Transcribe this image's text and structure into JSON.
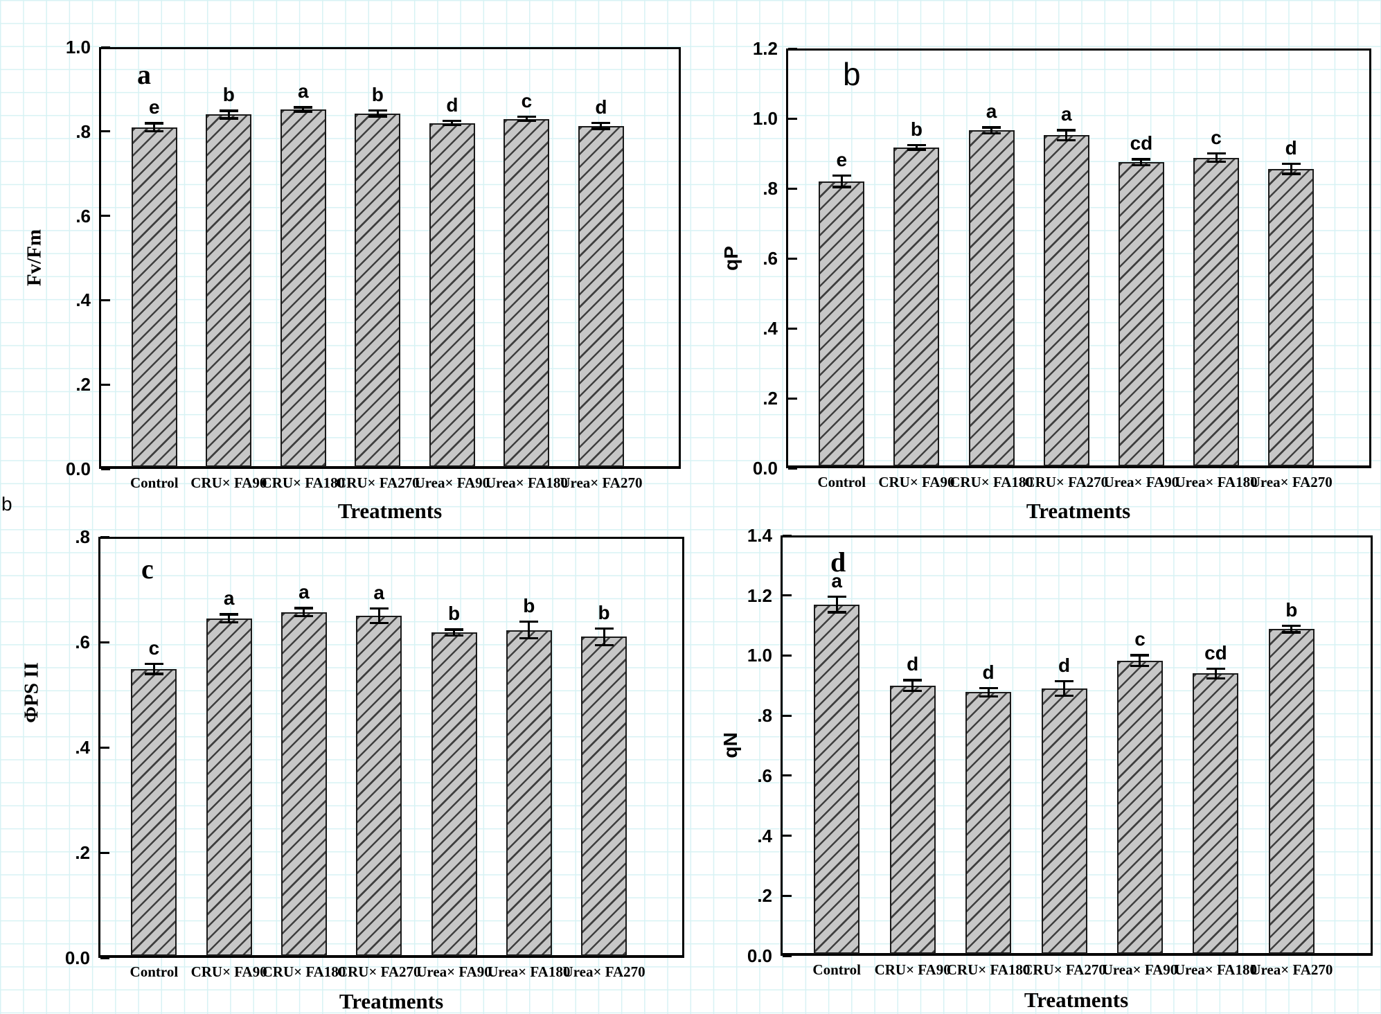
{
  "stray_label": "b",
  "colors": {
    "grid": "#d7f2f4",
    "bar_fill": "#c7c7c7",
    "bar_hatch": "#3f3f3f",
    "bar_border": "#1a1a1a",
    "axis": "#000000"
  },
  "chart_data": [
    {
      "type": "bar",
      "panel_label": "a",
      "ylabel": "Fv/Fm",
      "xlabel": "Treatments",
      "ylim": [
        0,
        1.0
      ],
      "grid": false,
      "yticks": [
        {
          "value": 1.0,
          "label": "1.0"
        },
        {
          "value": 0.8,
          "label": ".8"
        },
        {
          "value": 0.6,
          "label": ".6"
        },
        {
          "value": 0.4,
          "label": ".4"
        },
        {
          "value": 0.2,
          "label": ".2"
        },
        {
          "value": 0.0,
          "label": "0.0"
        }
      ],
      "categories": [
        "Control",
        "CRU× FA90",
        "CRU× FA180",
        "CRU× FA270",
        "Urea× FA90",
        "Urea× FA180",
        "Urea× FA270"
      ],
      "values": [
        0.81,
        0.84,
        0.852,
        0.843,
        0.82,
        0.83,
        0.813
      ],
      "errors": [
        0.012,
        0.012,
        0.008,
        0.01,
        0.008,
        0.008,
        0.01
      ],
      "sig_letters": [
        "e",
        "b",
        "a",
        "b",
        "d",
        "c",
        "d"
      ]
    },
    {
      "type": "bar",
      "panel_label": "b",
      "ylabel": "qP",
      "xlabel": "Treatments",
      "ylim": [
        0,
        1.2
      ],
      "grid": false,
      "yticks": [
        {
          "value": 1.2,
          "label": "1.2"
        },
        {
          "value": 1.0,
          "label": "1.0"
        },
        {
          "value": 0.8,
          "label": ".8"
        },
        {
          "value": 0.6,
          "label": ".6"
        },
        {
          "value": 0.4,
          "label": ".4"
        },
        {
          "value": 0.2,
          "label": ".2"
        },
        {
          "value": 0.0,
          "label": "0.0"
        }
      ],
      "categories": [
        "Control",
        "CRU× FA90",
        "CRU× FA180",
        "CRU× FA270",
        "Urea× FA90",
        "Urea× FA180",
        "Urea× FA270"
      ],
      "values": [
        0.82,
        0.917,
        0.966,
        0.952,
        0.875,
        0.888,
        0.856
      ],
      "errors": [
        0.02,
        0.01,
        0.012,
        0.018,
        0.012,
        0.015,
        0.018
      ],
      "sig_letters": [
        "e",
        "b",
        "a",
        "a",
        "cd",
        "c",
        "d"
      ]
    },
    {
      "type": "bar",
      "panel_label": "c",
      "ylabel": "ΦPS II",
      "xlabel": "Treatments",
      "ylim": [
        0,
        0.8
      ],
      "grid": false,
      "yticks": [
        {
          "value": 0.8,
          "label": ".8"
        },
        {
          "value": 0.6,
          "label": ".6"
        },
        {
          "value": 0.4,
          "label": ".4"
        },
        {
          "value": 0.2,
          "label": ".2"
        },
        {
          "value": 0.0,
          "label": "0.0"
        }
      ],
      "categories": [
        "Control",
        "CRU× FA90",
        "CRU× FA180",
        "CRU× FA270",
        "Urea× FA90",
        "Urea× FA180",
        "Urea× FA270"
      ],
      "values": [
        0.549,
        0.645,
        0.657,
        0.65,
        0.618,
        0.623,
        0.61
      ],
      "errors": [
        0.012,
        0.01,
        0.01,
        0.016,
        0.008,
        0.018,
        0.018
      ],
      "sig_letters": [
        "c",
        "a",
        "a",
        "a",
        "b",
        "b",
        "b"
      ]
    },
    {
      "type": "bar",
      "panel_label": "d",
      "ylabel": "qN",
      "xlabel": "Treatments",
      "ylim": [
        0,
        1.4
      ],
      "grid": false,
      "yticks": [
        {
          "value": 1.4,
          "label": "1.4"
        },
        {
          "value": 1.2,
          "label": "1.2"
        },
        {
          "value": 1.0,
          "label": "1.0"
        },
        {
          "value": 0.8,
          "label": ".8"
        },
        {
          "value": 0.6,
          "label": ".6"
        },
        {
          "value": 0.4,
          "label": ".4"
        },
        {
          "value": 0.2,
          "label": ".2"
        },
        {
          "value": 0.0,
          "label": "0.0"
        }
      ],
      "categories": [
        "Control",
        "CRU× FA90",
        "CRU× FA180",
        "CRU× FA270",
        "Urea× FA90",
        "Urea× FA180",
        "Urea× FA270"
      ],
      "values": [
        1.17,
        0.9,
        0.878,
        0.89,
        0.983,
        0.94,
        1.088
      ],
      "errors": [
        0.03,
        0.022,
        0.018,
        0.028,
        0.022,
        0.02,
        0.015
      ],
      "sig_letters": [
        "a",
        "d",
        "d",
        "d",
        "c",
        "cd",
        "b"
      ]
    }
  ]
}
